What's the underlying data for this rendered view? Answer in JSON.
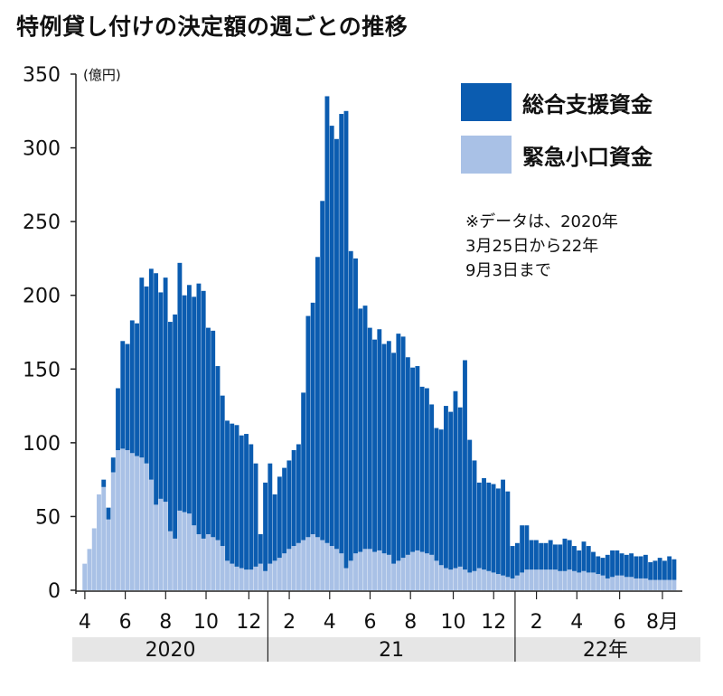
{
  "title": "特例貸し付けの決定額の週ごとの推移",
  "chart_data": {
    "type": "bar",
    "stacked": true,
    "ylabel": "(億円)",
    "ylim": [
      0,
      350
    ],
    "yticks": [
      0,
      50,
      100,
      150,
      200,
      250,
      300,
      350
    ],
    "x_month_ticks": [
      {
        "label": "4",
        "week": 1.5
      },
      {
        "label": "6",
        "week": 10
      },
      {
        "label": "8",
        "week": 18.5
      },
      {
        "label": "10",
        "week": 27
      },
      {
        "label": "12",
        "week": 36
      },
      {
        "label": "2",
        "week": 44.5
      },
      {
        "label": "4",
        "week": 53
      },
      {
        "label": "6",
        "week": 61.5
      },
      {
        "label": "8",
        "week": 70
      },
      {
        "label": "10",
        "week": 79
      },
      {
        "label": "12",
        "week": 87.5
      },
      {
        "label": "2",
        "week": 96.5
      },
      {
        "label": "4",
        "week": 105
      },
      {
        "label": "6",
        "week": 114
      },
      {
        "label": "8月",
        "week": 123
      }
    ],
    "year_bands": [
      {
        "label": "2020",
        "start_week": -1,
        "end_week": 40
      },
      {
        "label": "21",
        "start_week": 40,
        "end_week": 92
      },
      {
        "label": "22年",
        "start_week": 92,
        "end_week": 130
      }
    ],
    "series": [
      {
        "name": "総合支援資金",
        "color": "#0b5cb0",
        "values": [
          0,
          0,
          0,
          0,
          0,
          5,
          8,
          10,
          42,
          73,
          72,
          90,
          90,
          122,
          120,
          143,
          157,
          140,
          152,
          142,
          152,
          168,
          147,
          155,
          155,
          170,
          168,
          140,
          140,
          118,
          102,
          95,
          95,
          96,
          90,
          92,
          85,
          70,
          20,
          60,
          68,
          45,
          55,
          58,
          60,
          65,
          67,
          100,
          150,
          157,
          190,
          230,
          303,
          285,
          278,
          298,
          310,
          210,
          200,
          165,
          165,
          150,
          144,
          150,
          142,
          145,
          143,
          154,
          150,
          134,
          125,
          125,
          112,
          112,
          102,
          90,
          92,
          110,
          107,
          120,
          108,
          142,
          90,
          75,
          58,
          62,
          60,
          60,
          58,
          65,
          58,
          22,
          22,
          32,
          30,
          20,
          20,
          18,
          18,
          20,
          17,
          18,
          22,
          20,
          17,
          15,
          20,
          18,
          14,
          12,
          12,
          16,
          18,
          17,
          15,
          15,
          16,
          15,
          15,
          16,
          12,
          13,
          15,
          13,
          16,
          14
        ],
        "values_note": "estimated from bar heights"
      },
      {
        "name": "緊急小口資金",
        "color": "#a9c1e6",
        "values": [
          0,
          18,
          28,
          42,
          65,
          70,
          48,
          80,
          95,
          96,
          95,
          93,
          91,
          90,
          86,
          75,
          58,
          62,
          60,
          40,
          35,
          54,
          53,
          52,
          44,
          38,
          35,
          38,
          36,
          34,
          30,
          20,
          18,
          16,
          15,
          14,
          14,
          16,
          18,
          13,
          18,
          20,
          22,
          25,
          28,
          30,
          32,
          34,
          36,
          38,
          36,
          34,
          32,
          30,
          28,
          25,
          15,
          20,
          25,
          26,
          28,
          28,
          26,
          27,
          25,
          24,
          18,
          20,
          22,
          24,
          26,
          27,
          26,
          25,
          24,
          20,
          17,
          15,
          14,
          15,
          16,
          14,
          12,
          13,
          15,
          14,
          13,
          12,
          11,
          10,
          9,
          8,
          10,
          12,
          14,
          14,
          14,
          14,
          14,
          14,
          14,
          13,
          13,
          14,
          13,
          12,
          13,
          12,
          12,
          11,
          10,
          8,
          9,
          10,
          10,
          9,
          9,
          8,
          8,
          8,
          7,
          7,
          7,
          7,
          7,
          7
        ],
        "values_note": "estimated from bar heights"
      }
    ]
  },
  "legend": [
    {
      "label": "総合支援資金",
      "color": "#0b5cb0"
    },
    {
      "label": "緊急小口資金",
      "color": "#a9c1e6"
    }
  ],
  "note_lines": [
    "※データは、2020年",
    "3月25日から22年",
    "9月3日まで"
  ],
  "colors": {
    "band_bg": "#e6e6e6",
    "axis": "#222222"
  }
}
